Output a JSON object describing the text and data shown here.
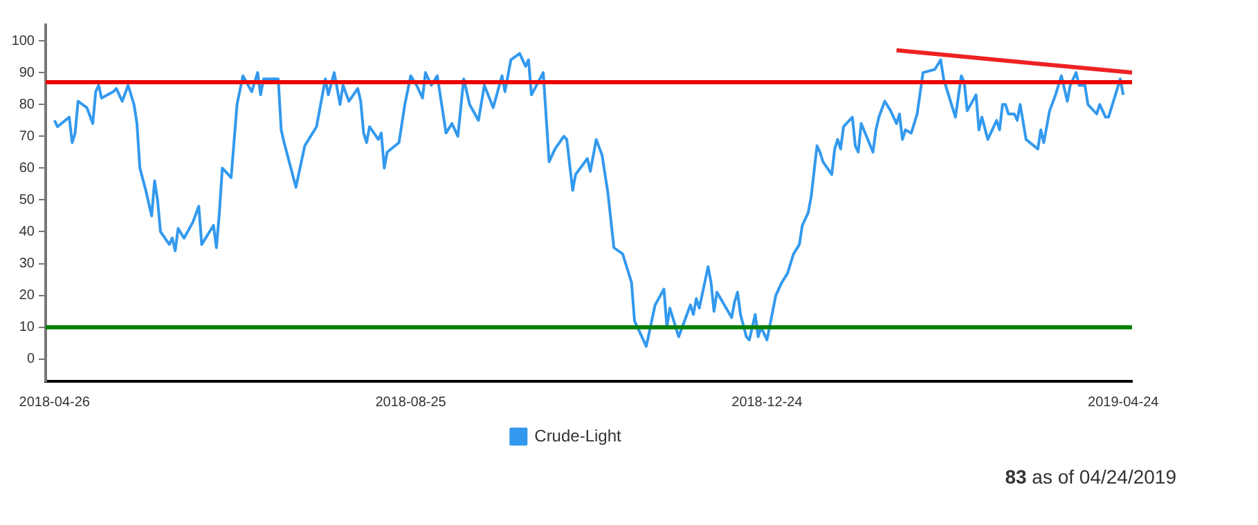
{
  "chart_data": {
    "type": "line",
    "annotations": [
      "83 as of 04/24/2019"
    ],
    "xlim": [
      "2018-04-23",
      "2019-04-27"
    ],
    "xticks": [
      "2018-04-26",
      "2018-08-25",
      "2018-12-24",
      "2019-04-24"
    ],
    "ylim": [
      -7,
      105
    ],
    "yticks": [
      0,
      10,
      20,
      30,
      40,
      50,
      60,
      70,
      80,
      90,
      100
    ],
    "grid": false,
    "legend": "bottom",
    "marker": "none",
    "ref_lines": [
      {
        "axis": "y",
        "value": 87,
        "color": "#ee0000"
      },
      {
        "axis": "y",
        "value": 10,
        "color": "#008000"
      }
    ],
    "series": [
      {
        "name": "Crude-Light",
        "color": "#3399ee",
        "x": [
          "2018-04-26",
          "2018-04-27",
          "2018-05-01",
          "2018-05-02",
          "2018-05-03",
          "2018-05-04",
          "2018-05-07",
          "2018-05-09",
          "2018-05-10",
          "2018-05-11",
          "2018-05-12",
          "2018-05-14",
          "2018-05-16",
          "2018-05-17",
          "2018-05-19",
          "2018-05-21",
          "2018-05-23",
          "2018-05-24",
          "2018-05-25",
          "2018-05-27",
          "2018-05-29",
          "2018-05-30",
          "2018-05-31",
          "2018-06-01",
          "2018-06-04",
          "2018-06-05",
          "2018-06-06",
          "2018-06-07",
          "2018-06-09",
          "2018-06-12",
          "2018-06-14",
          "2018-06-15",
          "2018-06-19",
          "2018-06-20",
          "2018-06-21",
          "2018-06-22",
          "2018-06-25",
          "2018-06-27",
          "2018-06-29",
          "2018-07-02",
          "2018-07-04",
          "2018-07-05",
          "2018-07-06",
          "2018-07-11",
          "2018-07-12",
          "2018-07-13",
          "2018-07-17",
          "2018-07-20",
          "2018-07-24",
          "2018-07-26",
          "2018-07-27",
          "2018-07-28",
          "2018-07-30",
          "2018-08-01",
          "2018-08-02",
          "2018-08-04",
          "2018-08-07",
          "2018-08-08",
          "2018-08-09",
          "2018-08-10",
          "2018-08-11",
          "2018-08-14",
          "2018-08-15",
          "2018-08-16",
          "2018-08-17",
          "2018-08-21",
          "2018-08-23",
          "2018-08-25",
          "2018-08-27",
          "2018-08-29",
          "2018-08-30",
          "2018-09-01",
          "2018-09-03",
          "2018-09-06",
          "2018-09-08",
          "2018-09-10",
          "2018-09-12",
          "2018-09-14",
          "2018-09-17",
          "2018-09-19",
          "2018-09-22",
          "2018-09-25",
          "2018-09-26",
          "2018-09-28",
          "2018-10-01",
          "2018-10-03",
          "2018-10-04",
          "2018-10-05",
          "2018-10-09",
          "2018-10-11",
          "2018-10-13",
          "2018-10-16",
          "2018-10-17",
          "2018-10-19",
          "2018-10-20",
          "2018-10-24",
          "2018-10-25",
          "2018-10-27",
          "2018-10-29",
          "2018-10-31",
          "2018-11-02",
          "2018-11-05",
          "2018-11-08",
          "2018-11-09",
          "2018-11-13",
          "2018-11-16",
          "2018-11-19",
          "2018-11-20",
          "2018-11-21",
          "2018-11-24",
          "2018-11-26",
          "2018-11-28",
          "2018-11-29",
          "2018-11-30",
          "2018-12-01",
          "2018-12-04",
          "2018-12-05",
          "2018-12-06",
          "2018-12-07",
          "2018-12-12",
          "2018-12-13",
          "2018-12-14",
          "2018-12-15",
          "2018-12-17",
          "2018-12-18",
          "2018-12-20",
          "2018-12-21",
          "2018-12-22",
          "2018-12-24",
          "2018-12-27",
          "2018-12-29",
          "2018-12-31",
          "2019-01-02",
          "2019-01-04",
          "2019-01-05",
          "2019-01-07",
          "2019-01-08",
          "2019-01-10",
          "2019-01-11",
          "2019-01-12",
          "2019-01-15",
          "2019-01-16",
          "2019-01-17",
          "2019-01-18",
          "2019-01-19",
          "2019-01-22",
          "2019-01-23",
          "2019-01-24",
          "2019-01-25",
          "2019-01-29",
          "2019-01-30",
          "2019-01-31",
          "2019-02-02",
          "2019-02-04",
          "2019-02-06",
          "2019-02-07",
          "2019-02-08",
          "2019-02-09",
          "2019-02-11",
          "2019-02-13",
          "2019-02-15",
          "2019-02-19",
          "2019-02-21",
          "2019-02-22",
          "2019-02-26",
          "2019-02-28",
          "2019-03-01",
          "2019-03-02",
          "2019-03-05",
          "2019-03-06",
          "2019-03-07",
          "2019-03-09",
          "2019-03-12",
          "2019-03-13",
          "2019-03-14",
          "2019-03-15",
          "2019-03-16",
          "2019-03-18",
          "2019-03-19",
          "2019-03-20",
          "2019-03-22",
          "2019-03-26",
          "2019-03-27",
          "2019-03-28",
          "2019-03-30",
          "2019-04-01",
          "2019-04-03",
          "2019-04-05",
          "2019-04-06",
          "2019-04-08",
          "2019-04-09",
          "2019-04-11",
          "2019-04-12",
          "2019-04-15",
          "2019-04-16",
          "2019-04-18",
          "2019-04-19",
          "2019-04-23",
          "2019-04-24"
        ],
        "values": [
          75,
          73,
          76,
          68,
          71,
          81,
          79,
          74,
          84,
          86,
          82,
          83,
          84,
          85,
          81,
          86,
          80,
          74,
          60,
          53,
          45,
          56,
          50,
          40,
          36,
          38,
          34,
          41,
          38,
          43,
          48,
          36,
          42,
          35,
          46,
          60,
          57,
          80,
          89,
          84,
          90,
          83,
          88,
          88,
          72,
          68,
          54,
          67,
          73,
          83,
          88,
          83,
          90,
          80,
          86,
          81,
          85,
          81,
          71,
          68,
          73,
          69,
          71,
          60,
          65,
          68,
          80,
          89,
          86,
          82,
          90,
          86,
          89,
          71,
          74,
          70,
          88,
          80,
          75,
          86,
          79,
          89,
          84,
          94,
          96,
          92,
          94,
          83,
          90,
          62,
          66,
          70,
          69,
          53,
          58,
          63,
          59,
          69,
          64,
          52,
          35,
          33,
          24,
          12,
          4,
          17,
          22,
          10,
          16,
          7,
          12,
          17,
          14,
          19,
          16,
          29,
          24,
          15,
          21,
          13,
          18,
          21,
          14,
          7,
          6,
          14,
          7,
          10,
          6,
          20,
          24,
          27,
          33,
          36,
          42,
          46,
          51,
          67,
          65,
          62,
          58,
          66,
          69,
          66,
          73,
          76,
          67,
          65,
          74,
          65,
          72,
          76,
          81,
          78,
          74,
          77,
          69,
          72,
          71,
          77,
          90,
          91,
          94,
          88,
          76,
          89,
          87,
          78,
          83,
          72,
          76,
          69,
          75,
          72,
          80,
          80,
          77,
          77,
          75,
          80,
          69,
          66,
          72,
          68,
          78,
          83,
          89,
          81,
          86,
          90,
          86,
          86,
          80,
          77,
          80,
          76,
          76,
          88,
          83
        ]
      },
      {
        "type": "line",
        "color": "#ee2222",
        "x": [
          "2019-02-06",
          "2019-04-27"
        ],
        "values": [
          97,
          90
        ]
      }
    ]
  }
}
